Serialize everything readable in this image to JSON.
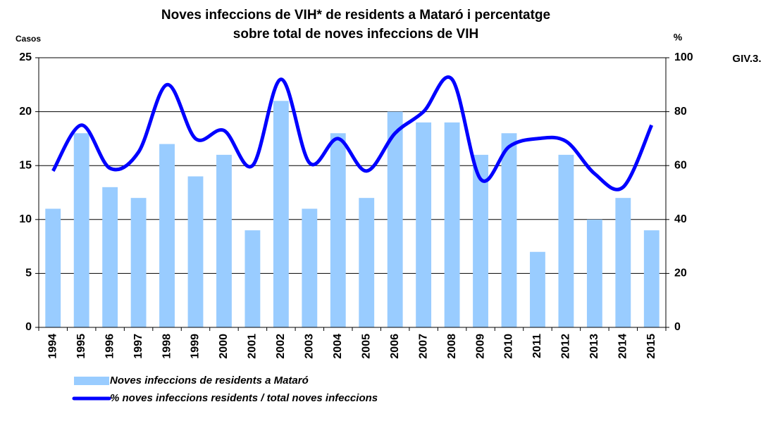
{
  "chart_data": {
    "type": "bar-line",
    "title": [
      "Noves infeccions de VIH* de residents a Mataró i percentatge",
      "sobre total de noves infeccions de VIH"
    ],
    "y_label": "Casos",
    "y2_label": "%",
    "code": "GIV.3.",
    "categories": [
      "1994",
      "1995",
      "1996",
      "1997",
      "1998",
      "1999",
      "2000",
      "2001",
      "2002",
      "2003",
      "2004",
      "2005",
      "2006",
      "2007",
      "2008",
      "2009",
      "2010",
      "2011",
      "2012",
      "2013",
      "2014",
      "2015"
    ],
    "series": [
      {
        "name": "Noves infeccions de residents a Mataró",
        "type": "bar",
        "color": "#99ccff",
        "values": [
          11,
          18,
          13,
          12,
          17,
          14,
          16,
          9,
          21,
          11,
          18,
          12,
          20,
          19,
          19,
          16,
          18,
          7,
          16,
          10,
          12,
          9
        ]
      },
      {
        "name": "% noves infeccions residents / total noves infeccions",
        "type": "line",
        "axis": "y2",
        "color": "#0000ff",
        "values": [
          58,
          75,
          59,
          65,
          90,
          70,
          73,
          60,
          92,
          61,
          70,
          58,
          72,
          80,
          92,
          55,
          67,
          70,
          69,
          57,
          52,
          75
        ]
      }
    ],
    "ylim": [
      0,
      25
    ],
    "yticks": [
      0,
      5,
      10,
      15,
      20,
      25
    ],
    "y2lim": [
      0,
      100
    ],
    "y2ticks": [
      0,
      20,
      40,
      60,
      80,
      100
    ],
    "grid": true
  }
}
